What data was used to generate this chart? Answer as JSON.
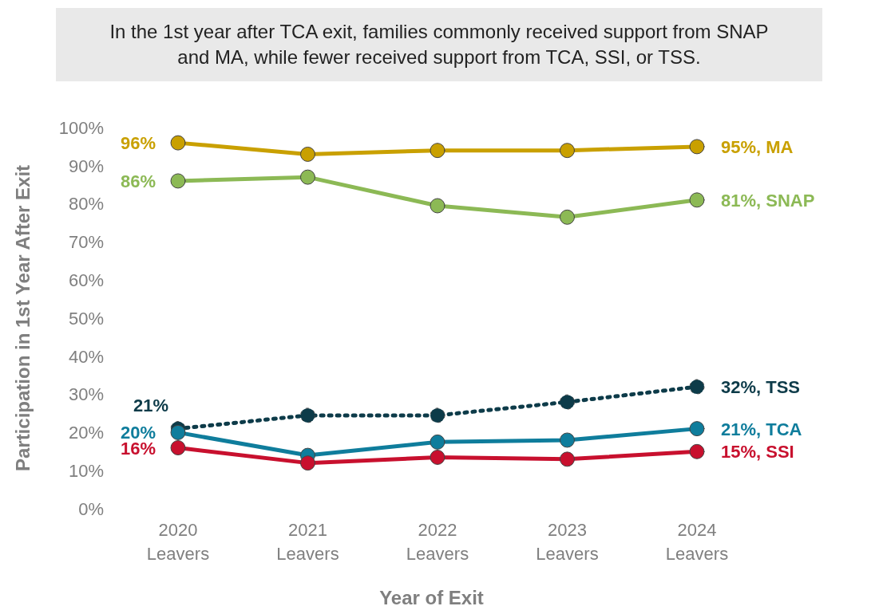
{
  "chart_data": {
    "type": "line",
    "title": "In the 1st year after TCA exit, families commonly received support from SNAP and MA, while fewer received support from TCA, SSI, or TSS.",
    "xlabel": "Year of Exit",
    "ylabel": "Participation in 1st Year After Exit",
    "categories": [
      "2020 Leavers",
      "2021 Leavers",
      "2022 Leavers",
      "2023 Leavers",
      "2024 Leavers"
    ],
    "ylim": [
      0,
      100
    ],
    "yticks": [
      {
        "value": 0,
        "label": "0%"
      },
      {
        "value": 10,
        "label": "10%"
      },
      {
        "value": 20,
        "label": "20%"
      },
      {
        "value": 30,
        "label": "30%"
      },
      {
        "value": 40,
        "label": "40%"
      },
      {
        "value": 50,
        "label": "50%"
      },
      {
        "value": 60,
        "label": "60%"
      },
      {
        "value": 70,
        "label": "70%"
      },
      {
        "value": 80,
        "label": "80%"
      },
      {
        "value": 90,
        "label": "90%"
      },
      {
        "value": 100,
        "label": "100%"
      }
    ],
    "marker": "circle",
    "series": [
      {
        "name": "MA",
        "color": "#c9a000",
        "values": [
          96,
          93,
          94,
          94,
          95
        ],
        "value_labels": [
          "96%",
          null,
          null,
          null,
          "95%,"
        ]
      },
      {
        "name": "SNAP",
        "color": "#8cb955",
        "values": [
          86,
          87,
          79.5,
          76.5,
          81
        ],
        "value_labels": [
          "86%",
          null,
          null,
          null,
          "81%,"
        ]
      },
      {
        "name": "TSS",
        "color": "#0d3b49",
        "line_style": "dotted",
        "values": [
          21,
          24.5,
          24.5,
          28,
          32
        ],
        "value_labels": [
          "21%",
          null,
          null,
          null,
          "32%,"
        ]
      },
      {
        "name": "TCA",
        "color": "#0f7d9c",
        "values": [
          20,
          14,
          17.5,
          18,
          21
        ],
        "value_labels": [
          "20%",
          null,
          null,
          null,
          "21%,"
        ]
      },
      {
        "name": "SSI",
        "color": "#c8102e",
        "values": [
          16,
          12,
          13.5,
          13,
          15
        ],
        "value_labels": [
          "16%",
          null,
          null,
          null,
          "15%,"
        ]
      }
    ]
  }
}
